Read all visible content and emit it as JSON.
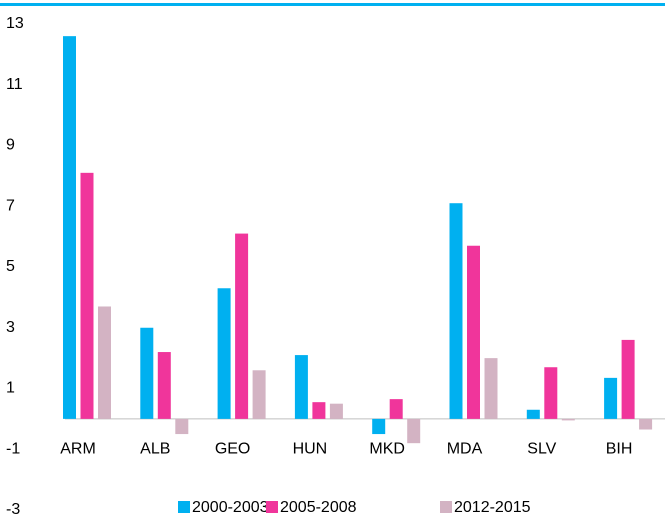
{
  "chart_data": {
    "type": "bar",
    "categories": [
      "ARM",
      "ALB",
      "GEO",
      "HUN",
      "MKD",
      "MDA",
      "SLV",
      "BIH"
    ],
    "series": [
      {
        "name": "2000-2003",
        "color": "#00b0f0",
        "values": [
          12.6,
          3.0,
          4.3,
          2.1,
          -0.5,
          7.1,
          0.3,
          1.35
        ]
      },
      {
        "name": "2005-2008",
        "color": "#f0359b",
        "values": [
          8.1,
          2.2,
          6.1,
          0.55,
          0.65,
          5.7,
          1.7,
          2.6
        ]
      },
      {
        "name": "2012-2015",
        "color": "#d3b3c3",
        "values": [
          3.7,
          -0.5,
          1.6,
          0.5,
          -0.8,
          2.0,
          -0.05,
          -0.35
        ]
      }
    ],
    "ylim": [
      -3,
      13
    ],
    "yticks": [
      -3,
      -1,
      1,
      3,
      5,
      7,
      9,
      11,
      13
    ],
    "grid": false,
    "legend": "bottom"
  }
}
